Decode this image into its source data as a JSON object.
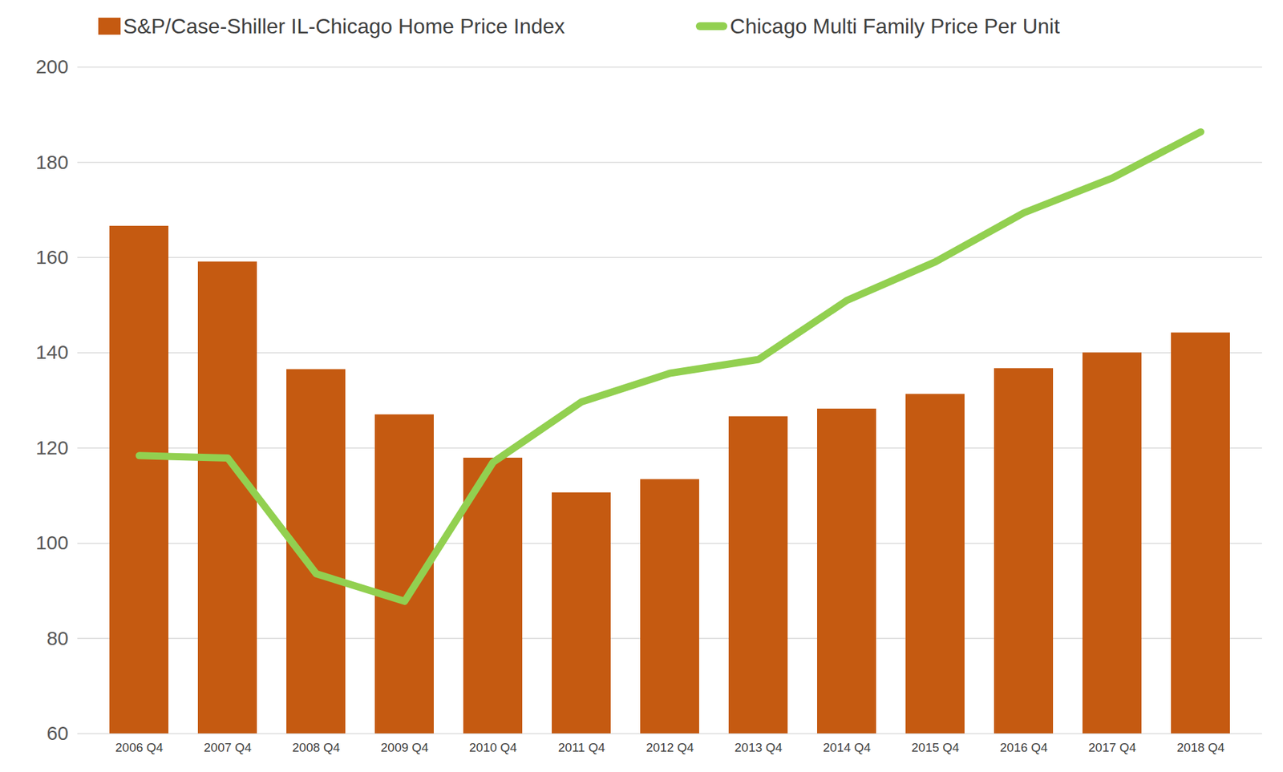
{
  "chart_data": {
    "type": "bar",
    "categories": [
      "2006 Q4",
      "2007 Q4",
      "2008 Q4",
      "2009 Q4",
      "2010 Q4",
      "2011 Q4",
      "2012 Q4",
      "2013 Q4",
      "2014 Q4",
      "2015 Q4",
      "2016 Q4",
      "2017 Q4",
      "2018 Q4"
    ],
    "series": [
      {
        "name": "S&P/Case-Shiller IL-Chicago Home Price Index",
        "type": "bar",
        "color": "#c55a11",
        "values": [
          166.6,
          159.1,
          136.5,
          127.0,
          117.9,
          110.6,
          113.4,
          126.6,
          128.2,
          131.3,
          136.7,
          140.0,
          144.2
        ]
      },
      {
        "name": "Chicago Multi Family Price Per Unit",
        "type": "line",
        "color": "#92d050",
        "values": [
          118.4,
          117.9,
          93.6,
          87.8,
          117.0,
          129.7,
          135.7,
          138.6,
          151.0,
          159.1,
          169.4,
          176.7,
          186.4
        ]
      }
    ],
    "ylim": [
      60,
      200
    ],
    "yticks": [
      60,
      80,
      100,
      120,
      140,
      160,
      180,
      200
    ],
    "grid": true,
    "legend": "top"
  }
}
